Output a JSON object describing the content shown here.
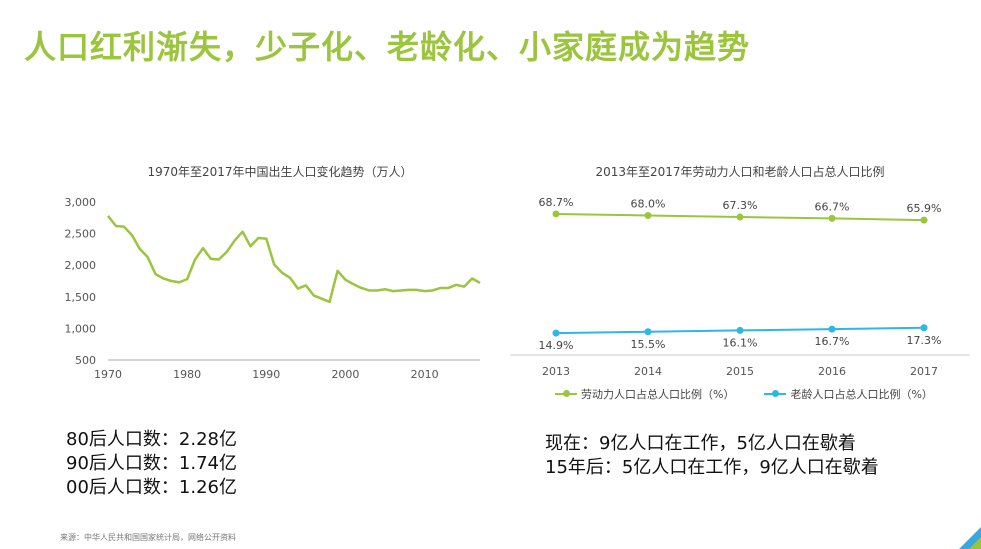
{
  "page": {
    "title": "人口红利渐失，少子化、老龄化、小家庭成为趋势",
    "source": "来源：中华人民共和国国家统计局，网络公开资料"
  },
  "stats_left": [
    "80后人口数：2.28亿",
    "90后人口数：1.74亿",
    "00后人口数：1.26亿"
  ],
  "stats_right": [
    "现在：9亿人口在工作，5亿人口在歇着",
    "15年后：5亿人口在工作，9亿人口在歇着"
  ],
  "colors": {
    "green": "#9bc53d",
    "blue": "#2db7e6"
  },
  "chart_data": [
    {
      "type": "line",
      "title": "1970年至2017年中国出生人口变化趋势（万人）",
      "x": [
        1970,
        1971,
        1972,
        1973,
        1974,
        1975,
        1976,
        1977,
        1978,
        1979,
        1980,
        1981,
        1982,
        1983,
        1984,
        1985,
        1986,
        1987,
        1988,
        1989,
        1990,
        1991,
        1992,
        1993,
        1994,
        1995,
        1996,
        1997,
        1998,
        1999,
        2000,
        2001,
        2002,
        2003,
        2004,
        2005,
        2006,
        2007,
        2008,
        2009,
        2010,
        2011,
        2012,
        2013,
        2014,
        2015,
        2016,
        2017
      ],
      "series": [
        {
          "values": [
            2780,
            2620,
            2610,
            2480,
            2260,
            2130,
            1860,
            1790,
            1750,
            1730,
            1780,
            2090,
            2270,
            2100,
            2090,
            2210,
            2390,
            2530,
            2300,
            2430,
            2420,
            2010,
            1880,
            1800,
            1630,
            1680,
            1520,
            1470,
            1420,
            1910,
            1770,
            1700,
            1640,
            1600,
            1600,
            1620,
            1590,
            1600,
            1610,
            1610,
            1590,
            1600,
            1640,
            1640,
            1690,
            1660,
            1790,
            1720
          ]
        }
      ],
      "xticks": [
        "1970",
        "1980",
        "1990",
        "2000",
        "2010"
      ],
      "yticks": [
        "3,000",
        "2,500",
        "2,000",
        "1,500",
        "1,000",
        "500"
      ],
      "ylim": [
        500,
        3000
      ],
      "xlim": [
        1970,
        2017
      ]
    },
    {
      "type": "line",
      "title": "2013年至2017年劳动力人口和老龄人口占总人口比例",
      "categories": [
        "2013",
        "2014",
        "2015",
        "2016",
        "2017"
      ],
      "series": [
        {
          "name": "劳动力人口占总人口比例（%）",
          "values": [
            68.7,
            68.0,
            67.3,
            66.7,
            65.9
          ],
          "labels": [
            "68.7%",
            "68.0%",
            "67.3%",
            "66.7%",
            "65.9%"
          ],
          "color": "#9bc53d"
        },
        {
          "name": "老龄人口占总人口比例（%）",
          "values": [
            14.9,
            15.5,
            16.1,
            16.7,
            17.3
          ],
          "labels": [
            "14.9%",
            "15.5%",
            "16.1%",
            "16.7%",
            "17.3%"
          ],
          "color": "#2db7e6"
        }
      ]
    }
  ]
}
